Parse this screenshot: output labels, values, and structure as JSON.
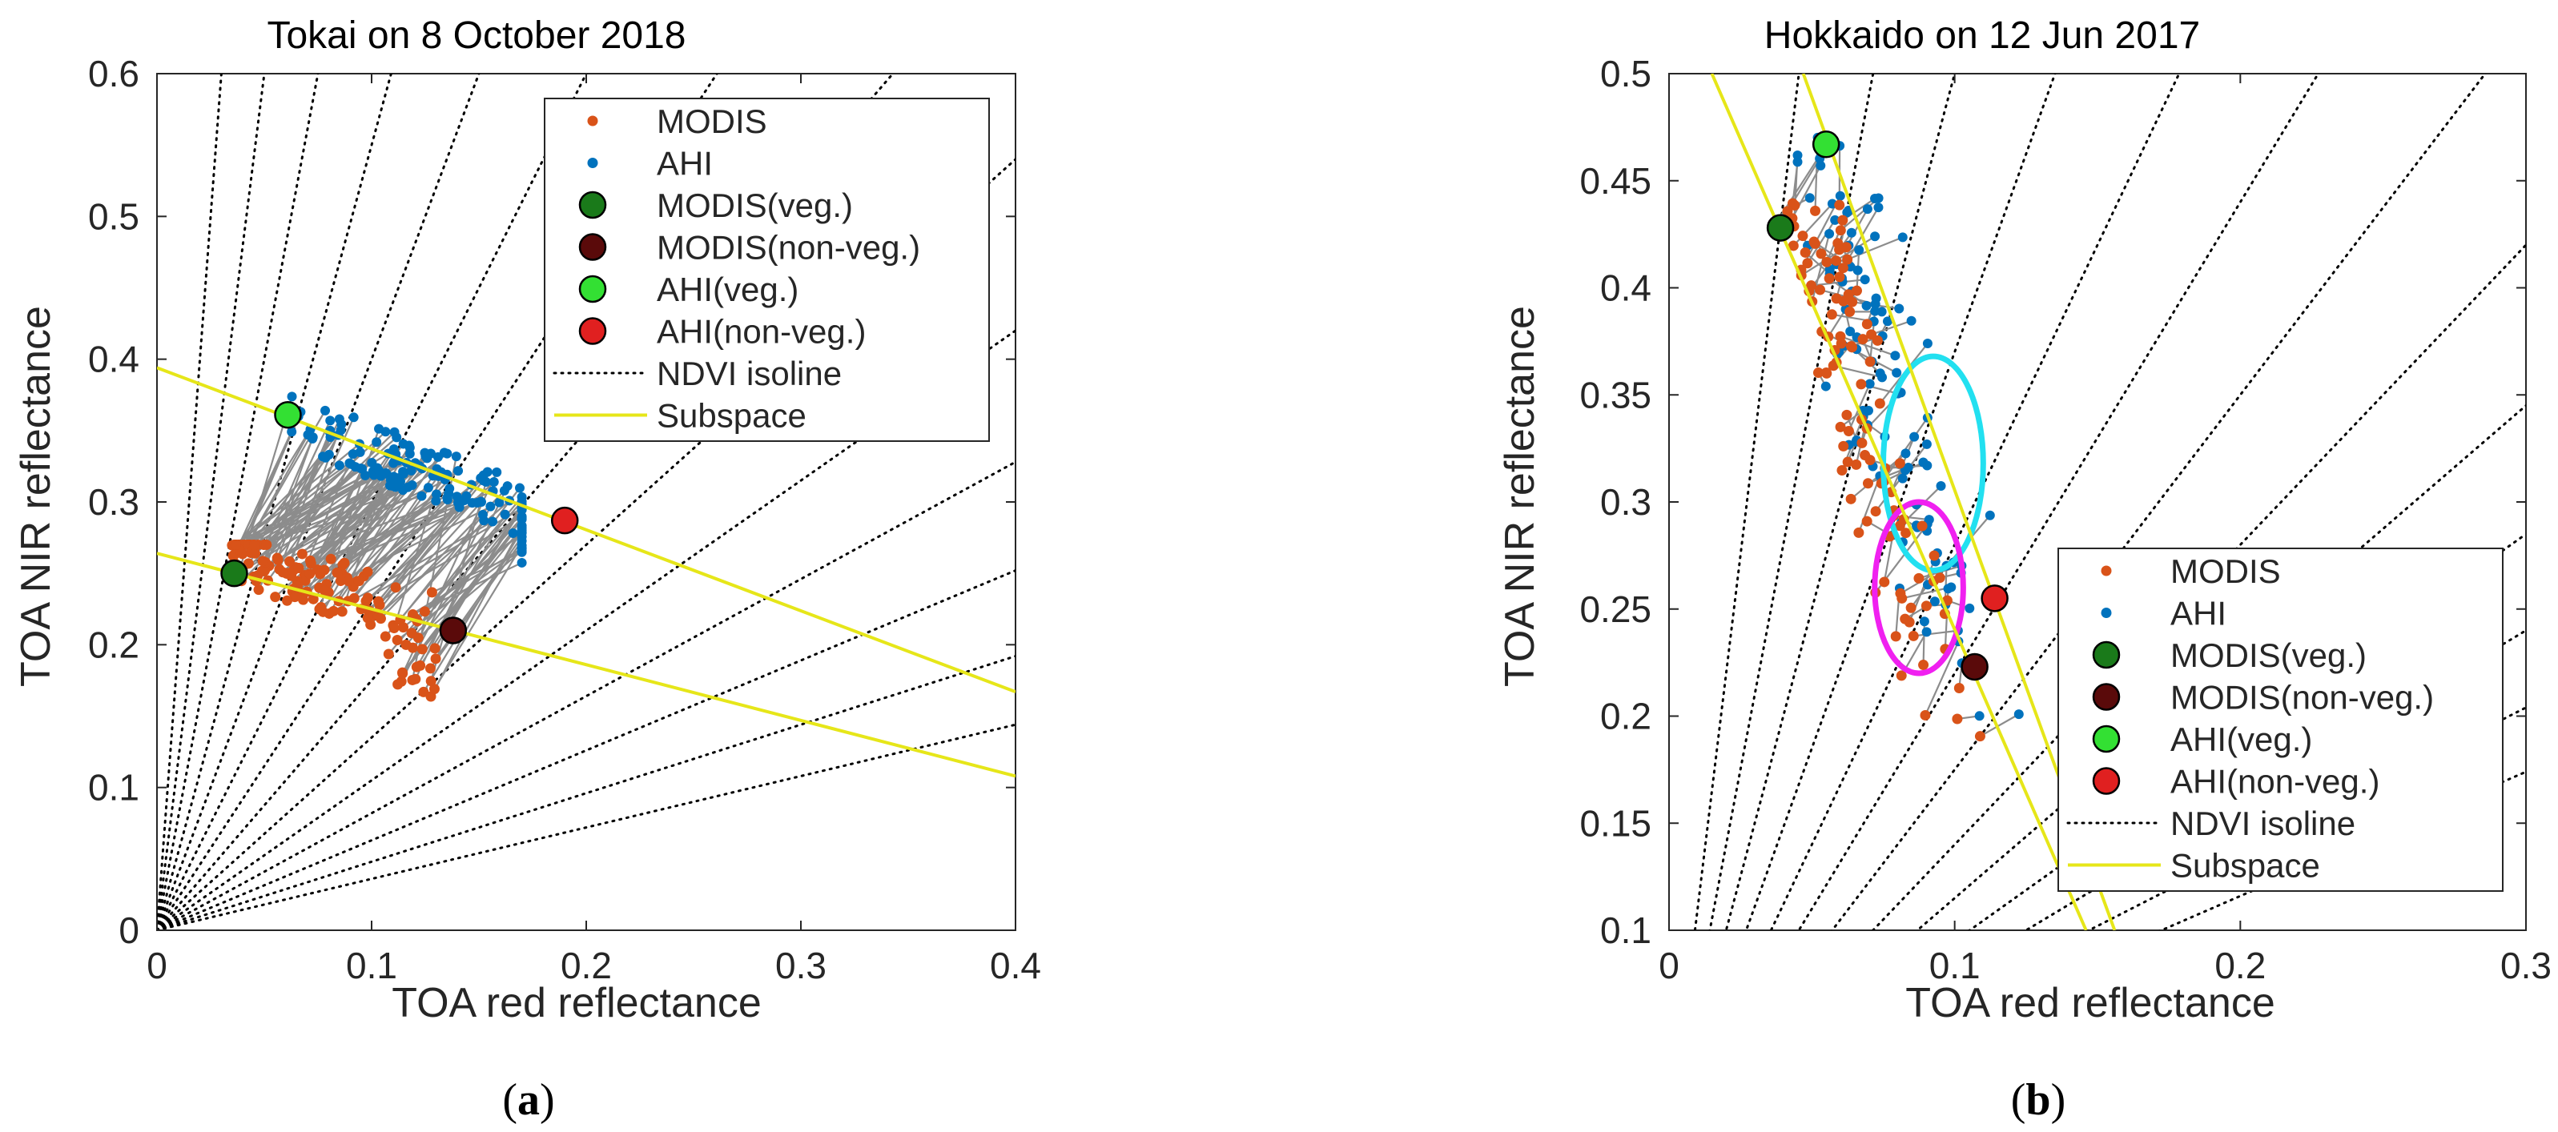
{
  "figure": {
    "panel_labels": [
      {
        "label": "(",
        "bold": "a",
        "close": ")"
      },
      {
        "label": "(",
        "bold": "b",
        "close": ")"
      }
    ]
  },
  "colors": {
    "modis": "#d95319",
    "ahi": "#0072bd",
    "modis_veg": "#1a7a1a",
    "modis_nonveg": "#5a0a0a",
    "ahi_veg": "#33e033",
    "ahi_nonveg": "#e02020",
    "isoline": "#000000",
    "subspace": "#e6e619",
    "connector": "#8c8c8c",
    "ellipse_cyan": "#22e0f0",
    "ellipse_magenta": "#f020f0"
  },
  "chart_data": [
    {
      "type": "scatter",
      "title": "Tokai on 8 October 2018",
      "xlabel": "TOA red reflectance",
      "ylabel": "TOA NIR reflectance",
      "xlim": [
        0,
        0.4
      ],
      "ylim": [
        0,
        0.6
      ],
      "xticks": [
        "0",
        "0.1",
        "0.2",
        "0.3",
        "0.4"
      ],
      "yticks": [
        "0",
        "0.1",
        "0.2",
        "0.3",
        "0.4",
        "0.5",
        "0.6"
      ],
      "legend_position": "top-right",
      "legend": [
        "MODIS",
        "AHI",
        "MODIS(veg.)",
        "MODIS(non-veg.)",
        "AHI(veg.)",
        "AHI(non-veg.)",
        "NDVI isoline",
        "Subspace"
      ],
      "endmembers": {
        "modis_veg": [
          0.036,
          0.25
        ],
        "modis_nonveg": [
          0.138,
          0.21
        ],
        "ahi_veg": [
          0.061,
          0.361
        ],
        "ahi_nonveg": [
          0.19,
          0.287
        ]
      },
      "subspace_lines": [
        {
          "x": [
            0,
            0.4
          ],
          "y": [
            0.394,
            0.167
          ]
        },
        {
          "x": [
            0,
            0.4
          ],
          "y": [
            0.264,
            0.108
          ]
        }
      ],
      "ndvi_isoline_slopes": [
        20,
        12,
        8,
        5.5,
        4,
        3,
        2.3,
        1.75,
        1.35,
        1.05,
        0.82,
        0.63,
        0.48,
        0.36
      ],
      "scatter_region": {
        "modis": {
          "x_range": [
            0.035,
            0.13
          ],
          "y_range": [
            0.15,
            0.27
          ]
        },
        "ahi": {
          "x_range": [
            0.06,
            0.17
          ],
          "y_range": [
            0.22,
            0.39
          ]
        }
      }
    },
    {
      "type": "scatter",
      "title": "Hokkaido on 12 Jun 2017",
      "xlabel": "TOA red reflectance",
      "ylabel": "TOA NIR reflectance",
      "xlim": [
        0,
        0.3
      ],
      "ylim": [
        0.1,
        0.5
      ],
      "xticks": [
        "0",
        "0.1",
        "0.2",
        "0.3"
      ],
      "yticks": [
        "0.1",
        "0.15",
        "0.2",
        "0.25",
        "0.3",
        "0.35",
        "0.4",
        "0.45",
        "0.5"
      ],
      "legend_position": "bottom-right",
      "legend": [
        "MODIS",
        "AHI",
        "MODIS(veg.)",
        "MODIS(non-veg.)",
        "AHI(veg.)",
        "AHI(non-veg.)",
        "NDVI isoline",
        "Subspace"
      ],
      "endmembers": {
        "modis_veg": [
          0.039,
          0.428
        ],
        "modis_nonveg": [
          0.107,
          0.223
        ],
        "ahi_veg": [
          0.055,
          0.467
        ],
        "ahi_nonveg": [
          0.114,
          0.255
        ]
      },
      "subspace_lines": [
        {
          "x": [
            0.015,
            0.146
          ],
          "y": [
            0.5,
            0.1
          ]
        },
        {
          "x": [
            0.047,
            0.156
          ],
          "y": [
            0.5,
            0.1
          ]
        }
      ],
      "ndvi_isoline_slopes": [
        11,
        7,
        5,
        3.7,
        2.8,
        2.2,
        1.75,
        1.4,
        1.15,
        0.95,
        0.8,
        0.68,
        0.58
      ],
      "scatter_region": {
        "modis": {
          "x_range": [
            0.035,
            0.13
          ],
          "y_range": [
            0.17,
            0.44
          ]
        },
        "ahi": {
          "x_range": [
            0.045,
            0.135
          ],
          "y_range": [
            0.2,
            0.48
          ]
        }
      },
      "ellipses": [
        {
          "color_key": "ellipse_cyan",
          "cx": 0.0925,
          "cy": 0.318,
          "rx": 0.0175,
          "ry": 0.05
        },
        {
          "color_key": "ellipse_magenta",
          "cx": 0.0875,
          "cy": 0.26,
          "rx": 0.0155,
          "ry": 0.04
        }
      ]
    }
  ]
}
